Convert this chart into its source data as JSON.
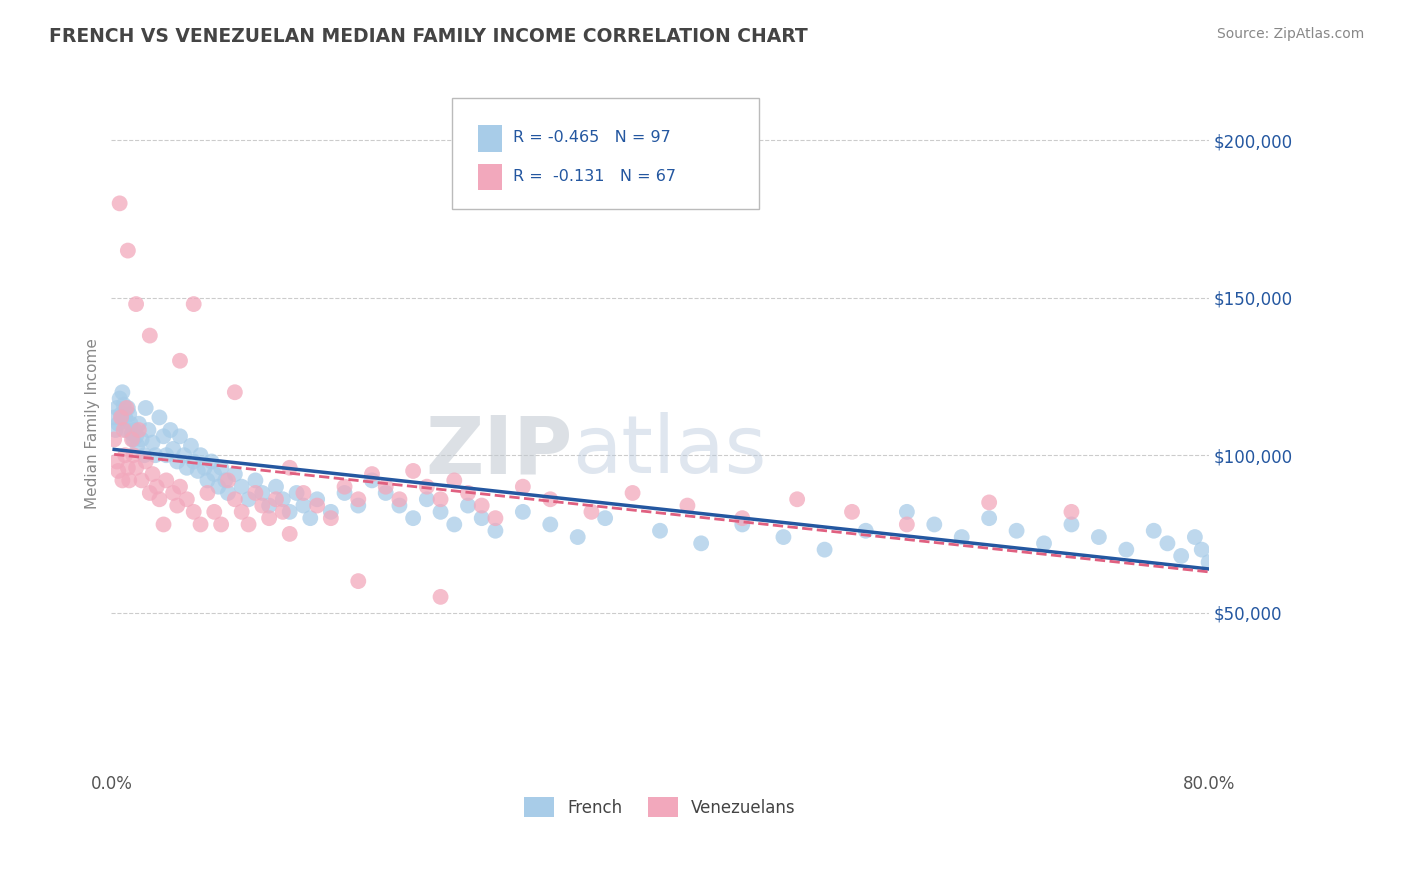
{
  "title": "FRENCH VS VENEZUELAN MEDIAN FAMILY INCOME CORRELATION CHART",
  "source_text": "Source: ZipAtlas.com",
  "ylabel": "Median Family Income",
  "xlim": [
    0.0,
    0.8
  ],
  "ylim": [
    0,
    220000
  ],
  "yticks": [
    50000,
    100000,
    150000,
    200000
  ],
  "yticklabels": [
    "$50,000",
    "$100,000",
    "$150,000",
    "$200,000"
  ],
  "french_color": "#A8CCE8",
  "venezuelan_color": "#F2A8BC",
  "french_line_color": "#2457A0",
  "venezuelan_line_color": "#E06080",
  "french_R": "-0.465",
  "french_N": "97",
  "venezuelan_R": "-0.131",
  "venezuelan_N": "67",
  "legend_french": "French",
  "legend_venezuelan": "Venezuelans",
  "watermark": "ZIPAtlas",
  "title_color": "#444444",
  "ylabel_color": "#888888",
  "grid_color": "#CCCCCC",
  "french_x": [
    0.002,
    0.003,
    0.004,
    0.005,
    0.006,
    0.007,
    0.008,
    0.009,
    0.01,
    0.011,
    0.012,
    0.013,
    0.014,
    0.015,
    0.016,
    0.017,
    0.018,
    0.019,
    0.02,
    0.022,
    0.024,
    0.025,
    0.027,
    0.03,
    0.032,
    0.035,
    0.038,
    0.04,
    0.043,
    0.045,
    0.048,
    0.05,
    0.053,
    0.055,
    0.058,
    0.06,
    0.063,
    0.065,
    0.068,
    0.07,
    0.073,
    0.075,
    0.078,
    0.08,
    0.083,
    0.085,
    0.09,
    0.095,
    0.1,
    0.105,
    0.11,
    0.115,
    0.12,
    0.125,
    0.13,
    0.135,
    0.14,
    0.145,
    0.15,
    0.16,
    0.17,
    0.18,
    0.19,
    0.2,
    0.21,
    0.22,
    0.23,
    0.24,
    0.25,
    0.26,
    0.27,
    0.28,
    0.3,
    0.32,
    0.34,
    0.36,
    0.4,
    0.43,
    0.46,
    0.49,
    0.52,
    0.55,
    0.58,
    0.6,
    0.62,
    0.64,
    0.66,
    0.68,
    0.7,
    0.72,
    0.74,
    0.76,
    0.77,
    0.78,
    0.79,
    0.795,
    0.8
  ],
  "french_y": [
    112000,
    108000,
    115000,
    110000,
    118000,
    113000,
    120000,
    116000,
    112000,
    108000,
    115000,
    113000,
    110000,
    107000,
    105000,
    108000,
    106000,
    103000,
    110000,
    105000,
    100000,
    115000,
    108000,
    104000,
    100000,
    112000,
    106000,
    100000,
    108000,
    102000,
    98000,
    106000,
    100000,
    96000,
    103000,
    98000,
    95000,
    100000,
    96000,
    92000,
    98000,
    94000,
    90000,
    96000,
    92000,
    88000,
    94000,
    90000,
    86000,
    92000,
    88000,
    84000,
    90000,
    86000,
    82000,
    88000,
    84000,
    80000,
    86000,
    82000,
    88000,
    84000,
    92000,
    88000,
    84000,
    80000,
    86000,
    82000,
    78000,
    84000,
    80000,
    76000,
    82000,
    78000,
    74000,
    80000,
    76000,
    72000,
    78000,
    74000,
    70000,
    76000,
    82000,
    78000,
    74000,
    80000,
    76000,
    72000,
    78000,
    74000,
    70000,
    76000,
    72000,
    68000,
    74000,
    70000,
    66000
  ],
  "venezuelan_x": [
    0.002,
    0.004,
    0.005,
    0.007,
    0.008,
    0.009,
    0.01,
    0.011,
    0.012,
    0.013,
    0.015,
    0.016,
    0.018,
    0.02,
    0.022,
    0.025,
    0.028,
    0.03,
    0.033,
    0.035,
    0.038,
    0.04,
    0.045,
    0.048,
    0.05,
    0.055,
    0.06,
    0.065,
    0.07,
    0.075,
    0.08,
    0.085,
    0.09,
    0.095,
    0.1,
    0.105,
    0.11,
    0.115,
    0.12,
    0.125,
    0.13,
    0.14,
    0.15,
    0.16,
    0.17,
    0.18,
    0.19,
    0.2,
    0.21,
    0.22,
    0.23,
    0.24,
    0.25,
    0.26,
    0.27,
    0.28,
    0.3,
    0.32,
    0.35,
    0.38,
    0.42,
    0.46,
    0.5,
    0.54,
    0.58,
    0.64,
    0.7
  ],
  "venezuelan_y": [
    105000,
    98000,
    95000,
    112000,
    92000,
    108000,
    100000,
    115000,
    96000,
    92000,
    105000,
    100000,
    96000,
    108000,
    92000,
    98000,
    88000,
    94000,
    90000,
    86000,
    78000,
    92000,
    88000,
    84000,
    90000,
    86000,
    82000,
    78000,
    88000,
    82000,
    78000,
    92000,
    86000,
    82000,
    78000,
    88000,
    84000,
    80000,
    86000,
    82000,
    96000,
    88000,
    84000,
    80000,
    90000,
    86000,
    94000,
    90000,
    86000,
    95000,
    90000,
    86000,
    92000,
    88000,
    84000,
    80000,
    90000,
    86000,
    82000,
    88000,
    84000,
    80000,
    86000,
    82000,
    78000,
    85000,
    82000
  ],
  "venezuelan_outlier_x": [
    0.006,
    0.012,
    0.018,
    0.028,
    0.05,
    0.06,
    0.09,
    0.13,
    0.18,
    0.24
  ],
  "venezuelan_outlier_y": [
    180000,
    165000,
    148000,
    138000,
    130000,
    148000,
    120000,
    75000,
    60000,
    55000
  ]
}
